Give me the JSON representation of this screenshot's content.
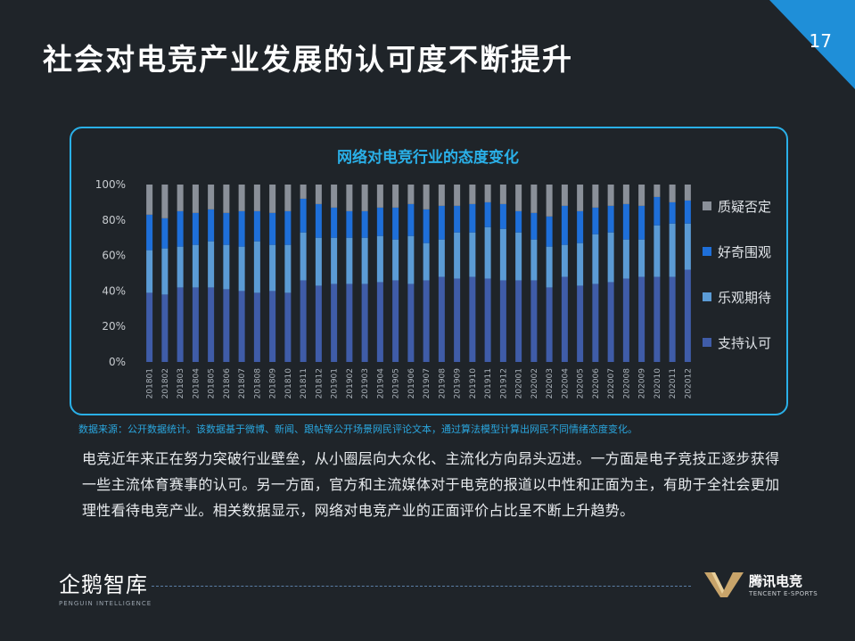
{
  "header": {
    "title": "社会对电竞产业发展的认可度不断提升",
    "page_number": "17"
  },
  "source_note": "数据来源：公开数据统计。该数据基于微博、新闻、跟帖等公开场景网民评论文本，通过算法模型计算出网民不同情绪态度变化。",
  "body_text": "电竞近年来正在努力突破行业壁垒，从小圈层向大众化、主流化方向昂头迈进。一方面是电子竞技正逐步获得一些主流体育赛事的认可。另一方面，官方和主流媒体对于电竞的报道以中性和正面为主，有助于全社会更加理性看待电竞产业。相关数据显示，网络对电竞产业的正面评价占比呈不断上升趋势。",
  "logos": {
    "left_cn": "企鹅智库",
    "left_en": "PENGUIN INTELLIGENCE",
    "right_cn": "腾讯电竞",
    "right_en": "TENCENT E-SPORTS"
  },
  "colors": {
    "background": "#1f2429",
    "accent": "#2ab0e8",
    "support": "#3f5ca8",
    "expect": "#5b9bd5",
    "curious": "#1e6fd9",
    "negative": "#8a9099"
  },
  "chart_data": {
    "type": "bar",
    "stacked": true,
    "title": "网络对电竞行业的态度变化",
    "ylim": [
      0,
      100
    ],
    "y_ticks": [
      "0%",
      "20%",
      "40%",
      "60%",
      "80%",
      "100%"
    ],
    "legend_position": "right",
    "categories": [
      "201801",
      "201802",
      "201803",
      "201804",
      "201805",
      "201806",
      "201807",
      "201808",
      "201809",
      "201810",
      "201811",
      "201812",
      "201901",
      "201902",
      "201903",
      "201904",
      "201905",
      "201906",
      "201907",
      "201908",
      "201909",
      "201910",
      "201911",
      "201912",
      "202001",
      "202002",
      "202003",
      "202004",
      "202005",
      "202006",
      "202007",
      "202008",
      "202009",
      "202010",
      "202011",
      "202012"
    ],
    "series": [
      {
        "name": "支持认可",
        "color": "#3f5ca8",
        "values": [
          39,
          38,
          42,
          42,
          42,
          41,
          40,
          39,
          40,
          39,
          46,
          43,
          44,
          44,
          44,
          45,
          46,
          44,
          46,
          48,
          47,
          48,
          47,
          46,
          46,
          46,
          42,
          48,
          43,
          44,
          45,
          47,
          48,
          48,
          48,
          52
        ]
      },
      {
        "name": "乐观期待",
        "color": "#5b9bd5",
        "values": [
          24,
          26,
          23,
          24,
          26,
          25,
          25,
          29,
          26,
          27,
          27,
          27,
          26,
          26,
          26,
          26,
          23,
          27,
          21,
          21,
          26,
          25,
          29,
          29,
          27,
          23,
          23,
          18,
          24,
          28,
          28,
          22,
          21,
          29,
          30,
          26
        ]
      },
      {
        "name": "好奇围观",
        "color": "#1e6fd9",
        "values": [
          20,
          17,
          20,
          18,
          18,
          18,
          20,
          17,
          18,
          19,
          19,
          19,
          17,
          15,
          15,
          16,
          18,
          18,
          19,
          19,
          15,
          16,
          14,
          14,
          12,
          15,
          17,
          22,
          18,
          15,
          15,
          20,
          19,
          16,
          12,
          13
        ]
      },
      {
        "name": "质疑否定",
        "color": "#8a9099",
        "values": [
          17,
          19,
          15,
          16,
          14,
          16,
          15,
          15,
          16,
          15,
          8,
          11,
          13,
          15,
          15,
          13,
          13,
          11,
          14,
          12,
          12,
          11,
          10,
          11,
          15,
          16,
          18,
          12,
          15,
          13,
          12,
          11,
          12,
          7,
          10,
          9
        ]
      }
    ]
  }
}
